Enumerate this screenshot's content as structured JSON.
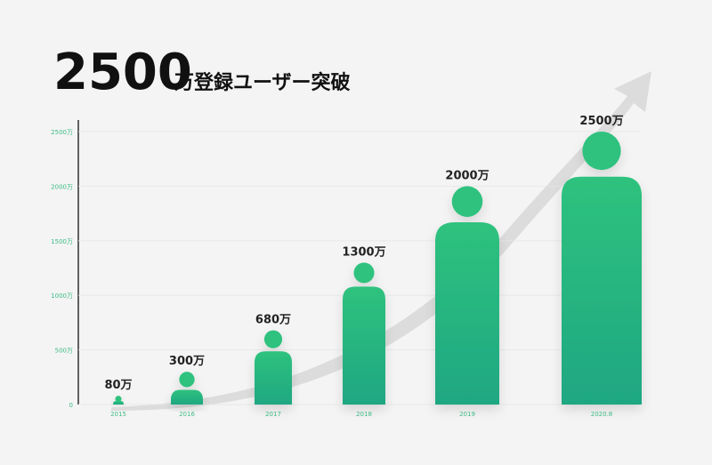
{
  "header": {
    "title_number": "2500",
    "title_text": "万登録ユーザー突破"
  },
  "colors": {
    "bar_top": "#2ec27e",
    "bar_bottom": "#1fa782",
    "arrow": "#dcdcdc",
    "tick_text": "#3dbb86",
    "title": "#111111"
  },
  "chart_data": {
    "type": "bar",
    "title": "2500万登録ユーザー突破",
    "categories": [
      "2015",
      "2016",
      "2017",
      "2018",
      "2019",
      "2020.8"
    ],
    "values": [
      80,
      300,
      680,
      1300,
      2000,
      2500
    ],
    "data_labels": [
      "80万",
      "300万",
      "680万",
      "1300万",
      "2000万",
      "2500万"
    ],
    "y_ticks": [
      0,
      500,
      1000,
      1500,
      2000,
      2500
    ],
    "y_tick_labels": [
      "0",
      "500万",
      "1000万",
      "1500万",
      "2000万",
      "2500万"
    ],
    "ylim": [
      0,
      2500
    ],
    "grid": false,
    "marker": "person-figure"
  }
}
